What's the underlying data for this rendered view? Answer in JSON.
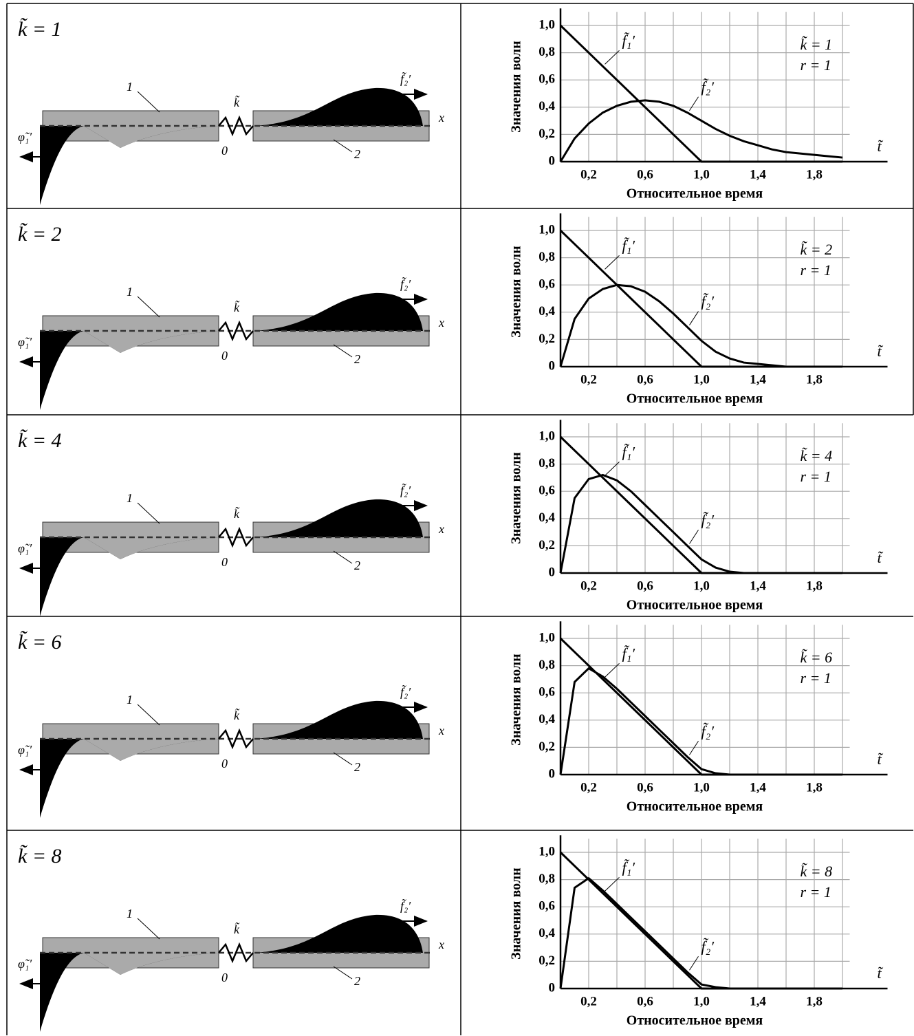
{
  "rows": [
    {
      "title": "k̃ = 1",
      "labels": {
        "rod1": "1",
        "rod2": "2",
        "origin": "0",
        "x": "x",
        "spring": "k̃",
        "wave2": "f̃₂′",
        "wave1": "φ̃₁′"
      }
    },
    {
      "title": "k̃ = 2",
      "labels": {
        "rod1": "1",
        "rod2": "2",
        "origin": "0",
        "x": "x",
        "spring": "k̃",
        "wave2": "f̃₂′",
        "wave1": "φ̃₁′"
      }
    },
    {
      "title": "k̃ = 4",
      "labels": {
        "rod1": "1",
        "rod2": "2",
        "origin": "0",
        "x": "x",
        "spring": "k̃",
        "wave2": "f̃₂′",
        "wave1": "φ̃₁′"
      }
    },
    {
      "title": "k̃ = 6",
      "labels": {
        "rod1": "1",
        "rod2": "2",
        "origin": "0",
        "x": "x",
        "spring": "k̃",
        "wave2": "f̃₂′",
        "wave1": "φ̃₁′"
      }
    },
    {
      "title": "k̃ = 8",
      "labels": {
        "rod1": "1",
        "rod2": "2",
        "origin": "0",
        "x": "x",
        "spring": "k̃",
        "wave2": "f̃₂′",
        "wave1": "φ̃₁′"
      }
    }
  ],
  "chart_data": [
    {
      "type": "line",
      "xlabel": "Относительное время",
      "ylabel": "Значения волн",
      "xsymbol": "t̃",
      "annotations": [
        "k̃ = 1",
        "r = 1"
      ],
      "x": [
        0,
        0.1,
        0.2,
        0.3,
        0.4,
        0.5,
        0.6,
        0.7,
        0.8,
        0.9,
        1.0,
        1.1,
        1.2,
        1.3,
        1.4,
        1.5,
        1.6,
        1.7,
        1.8,
        1.9,
        2.0
      ],
      "series": [
        {
          "name": "f̃₁′",
          "color": "#000",
          "values": [
            1,
            0.9,
            0.8,
            0.7,
            0.6,
            0.5,
            0.4,
            0.3,
            0.2,
            0.1,
            0,
            0,
            0,
            0,
            0,
            0,
            0,
            0,
            0,
            0,
            0
          ]
        },
        {
          "name": "f̃₂′",
          "color": "#000",
          "values": [
            0,
            0.17,
            0.28,
            0.36,
            0.41,
            0.44,
            0.45,
            0.44,
            0.41,
            0.36,
            0.3,
            0.24,
            0.19,
            0.15,
            0.12,
            0.09,
            0.07,
            0.06,
            0.05,
            0.04,
            0.03
          ]
        }
      ],
      "xlim": [
        0,
        2.1
      ],
      "ylim": [
        0,
        1.1
      ],
      "xticks": [
        {
          "value": 0.2,
          "label": "0,2"
        },
        {
          "value": 0.6,
          "label": "0,6"
        },
        {
          "value": 1.0,
          "label": "1,0"
        },
        {
          "value": 1.4,
          "label": "1,4"
        },
        {
          "value": 1.8,
          "label": "1,8"
        }
      ],
      "yticks": [
        0,
        {
          "value": 0.2,
          "label": "0,2"
        },
        {
          "value": 0.4,
          "label": "0,4"
        },
        {
          "value": 0.6,
          "label": "0,6"
        },
        {
          "value": 0.8,
          "label": "0,8"
        },
        {
          "value": 1.0,
          "label": "1,0"
        }
      ],
      "grid": true
    },
    {
      "type": "line",
      "xlabel": "Относительное время",
      "ylabel": "Значения волн",
      "xsymbol": "t̃",
      "annotations": [
        "k̃ = 2",
        "r = 1"
      ],
      "x": [
        0,
        0.1,
        0.2,
        0.3,
        0.4,
        0.5,
        0.6,
        0.7,
        0.8,
        0.9,
        1.0,
        1.1,
        1.2,
        1.3,
        1.4,
        1.5,
        1.6,
        1.7,
        1.8,
        1.9,
        2.0
      ],
      "series": [
        {
          "name": "f̃₁′",
          "color": "#000",
          "values": [
            1,
            0.9,
            0.8,
            0.7,
            0.6,
            0.5,
            0.4,
            0.3,
            0.2,
            0.1,
            0,
            0,
            0,
            0,
            0,
            0,
            0,
            0,
            0,
            0,
            0
          ]
        },
        {
          "name": "f̃₂′",
          "color": "#000",
          "values": [
            0,
            0.35,
            0.5,
            0.57,
            0.6,
            0.59,
            0.55,
            0.48,
            0.39,
            0.29,
            0.19,
            0.11,
            0.06,
            0.03,
            0.02,
            0.01,
            0,
            0,
            0,
            0,
            0
          ]
        }
      ],
      "xlim": [
        0,
        2.1
      ],
      "ylim": [
        0,
        1.1
      ],
      "xticks": [
        {
          "value": 0.2,
          "label": "0,2"
        },
        {
          "value": 0.6,
          "label": "0,6"
        },
        {
          "value": 1.0,
          "label": "1,0"
        },
        {
          "value": 1.4,
          "label": "1,4"
        },
        {
          "value": 1.8,
          "label": "1,8"
        }
      ],
      "yticks": [
        0,
        {
          "value": 0.2,
          "label": "0,2"
        },
        {
          "value": 0.4,
          "label": "0,4"
        },
        {
          "value": 0.6,
          "label": "0,6"
        },
        {
          "value": 0.8,
          "label": "0,8"
        },
        {
          "value": 1.0,
          "label": "1,0"
        }
      ],
      "grid": true
    },
    {
      "type": "line",
      "xlabel": "Относительное время",
      "ylabel": "Значения волн",
      "xsymbol": "t̃",
      "annotations": [
        "k̃ = 4",
        "r = 1"
      ],
      "x": [
        0,
        0.1,
        0.2,
        0.3,
        0.4,
        0.5,
        0.6,
        0.7,
        0.8,
        0.9,
        1.0,
        1.1,
        1.2,
        1.3,
        1.4,
        1.5,
        1.6,
        1.7,
        1.8,
        1.9,
        2.0
      ],
      "series": [
        {
          "name": "f̃₁′",
          "color": "#000",
          "values": [
            1,
            0.9,
            0.8,
            0.7,
            0.6,
            0.5,
            0.4,
            0.3,
            0.2,
            0.1,
            0,
            0,
            0,
            0,
            0,
            0,
            0,
            0,
            0,
            0,
            0
          ]
        },
        {
          "name": "f̃₂′",
          "color": "#000",
          "values": [
            0,
            0.55,
            0.69,
            0.72,
            0.68,
            0.6,
            0.5,
            0.4,
            0.3,
            0.2,
            0.1,
            0.04,
            0.01,
            0,
            0,
            0,
            0,
            0,
            0,
            0,
            0
          ]
        }
      ],
      "xlim": [
        0,
        2.1
      ],
      "ylim": [
        0,
        1.1
      ],
      "xticks": [
        {
          "value": 0.2,
          "label": "0,2"
        },
        {
          "value": 0.6,
          "label": "0,6"
        },
        {
          "value": 1.0,
          "label": "1,0"
        },
        {
          "value": 1.4,
          "label": "1,4"
        },
        {
          "value": 1.8,
          "label": "1,8"
        }
      ],
      "yticks": [
        0,
        {
          "value": 0.2,
          "label": "0,2"
        },
        {
          "value": 0.4,
          "label": "0,4"
        },
        {
          "value": 0.6,
          "label": "0,6"
        },
        {
          "value": 0.8,
          "label": "0,8"
        },
        {
          "value": 1.0,
          "label": "1,0"
        }
      ],
      "grid": true
    },
    {
      "type": "line",
      "xlabel": "Относительное время",
      "ylabel": "Значения волн",
      "xsymbol": "t̃",
      "annotations": [
        "k̃ = 6",
        "r = 1"
      ],
      "x": [
        0,
        0.1,
        0.2,
        0.3,
        0.4,
        0.5,
        0.6,
        0.7,
        0.8,
        0.9,
        1.0,
        1.1,
        1.2,
        1.3,
        1.4,
        1.5,
        1.6,
        1.7,
        1.8,
        1.9,
        2.0
      ],
      "series": [
        {
          "name": "f̃₁′",
          "color": "#000",
          "values": [
            1,
            0.9,
            0.8,
            0.7,
            0.6,
            0.5,
            0.4,
            0.3,
            0.2,
            0.1,
            0,
            0,
            0,
            0,
            0,
            0,
            0,
            0,
            0,
            0,
            0
          ]
        },
        {
          "name": "f̃₂′",
          "color": "#000",
          "values": [
            0,
            0.68,
            0.78,
            0.72,
            0.63,
            0.53,
            0.43,
            0.33,
            0.23,
            0.13,
            0.04,
            0.01,
            0,
            0,
            0,
            0,
            0,
            0,
            0,
            0,
            0
          ]
        }
      ],
      "xlim": [
        0,
        2.1
      ],
      "ylim": [
        0,
        1.1
      ],
      "xticks": [
        {
          "value": 0.2,
          "label": "0,2"
        },
        {
          "value": 0.6,
          "label": "0,6"
        },
        {
          "value": 1.0,
          "label": "1,0"
        },
        {
          "value": 1.4,
          "label": "1,4"
        },
        {
          "value": 1.8,
          "label": "1,8"
        }
      ],
      "yticks": [
        0,
        {
          "value": 0.2,
          "label": "0,2"
        },
        {
          "value": 0.4,
          "label": "0,4"
        },
        {
          "value": 0.6,
          "label": "0,6"
        },
        {
          "value": 0.8,
          "label": "0,8"
        },
        {
          "value": 1.0,
          "label": "1,0"
        }
      ],
      "grid": true
    },
    {
      "type": "line",
      "xlabel": "Относительное время",
      "ylabel": "Значения волн",
      "xsymbol": "t̃",
      "annotations": [
        "k̃ = 8",
        "r = 1"
      ],
      "x": [
        0,
        0.1,
        0.2,
        0.3,
        0.4,
        0.5,
        0.6,
        0.7,
        0.8,
        0.9,
        1.0,
        1.1,
        1.2,
        1.3,
        1.4,
        1.5,
        1.6,
        1.7,
        1.8,
        1.9,
        2.0
      ],
      "series": [
        {
          "name": "f̃₁′",
          "color": "#000",
          "values": [
            1,
            0.9,
            0.8,
            0.7,
            0.6,
            0.5,
            0.4,
            0.3,
            0.2,
            0.1,
            0,
            0,
            0,
            0,
            0,
            0,
            0,
            0,
            0,
            0,
            0
          ]
        },
        {
          "name": "f̃₂′",
          "color": "#000",
          "values": [
            0,
            0.74,
            0.81,
            0.72,
            0.62,
            0.52,
            0.42,
            0.32,
            0.22,
            0.12,
            0.03,
            0.01,
            0,
            0,
            0,
            0,
            0,
            0,
            0,
            0,
            0
          ]
        }
      ],
      "xlim": [
        0,
        2.1
      ],
      "ylim": [
        0,
        1.1
      ],
      "xticks": [
        {
          "value": 0.2,
          "label": "0,2"
        },
        {
          "value": 0.6,
          "label": "0,6"
        },
        {
          "value": 1.0,
          "label": "1,0"
        },
        {
          "value": 1.4,
          "label": "1,4"
        },
        {
          "value": 1.8,
          "label": "1,8"
        }
      ],
      "yticks": [
        0,
        {
          "value": 0.2,
          "label": "0,2"
        },
        {
          "value": 0.4,
          "label": "0,4"
        },
        {
          "value": 0.6,
          "label": "0,6"
        },
        {
          "value": 0.8,
          "label": "0,8"
        },
        {
          "value": 1.0,
          "label": "1,0"
        }
      ],
      "grid": true
    }
  ]
}
